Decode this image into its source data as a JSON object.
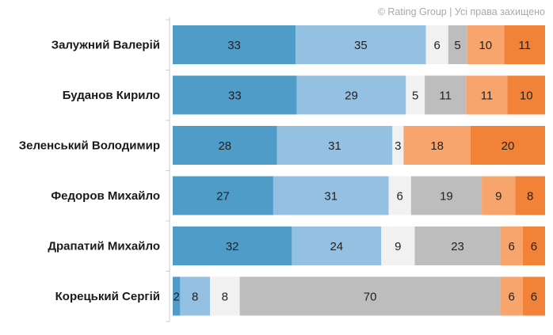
{
  "copyright": "© Rating Group | Усі права захищено",
  "chart_data": {
    "type": "bar",
    "orientation": "horizontal",
    "stacked": true,
    "percent_scale": true,
    "categories": [
      "Залужний Валерій",
      "Буданов Кирило",
      "Зеленський Володимир",
      "Федоров Михайло",
      "Драпатий Михайло",
      "Корецький Сергій"
    ],
    "series": [
      {
        "values": [
          33,
          33,
          28,
          27,
          32,
          2
        ],
        "color": "#4f9cc9"
      },
      {
        "values": [
          35,
          29,
          31,
          31,
          24,
          8
        ],
        "color": "#94c1e1"
      },
      {
        "values": [
          6,
          5,
          3,
          6,
          9,
          8
        ],
        "color": "#f1f1f1"
      },
      {
        "values": [
          5,
          11,
          0,
          19,
          23,
          70
        ],
        "color": "#bdbdbd"
      },
      {
        "values": [
          10,
          11,
          18,
          9,
          6,
          6
        ],
        "color": "#f7a56d"
      },
      {
        "values": [
          11,
          10,
          20,
          8,
          6,
          6
        ],
        "color": "#f28238"
      }
    ],
    "grid": false,
    "legend": "none"
  }
}
